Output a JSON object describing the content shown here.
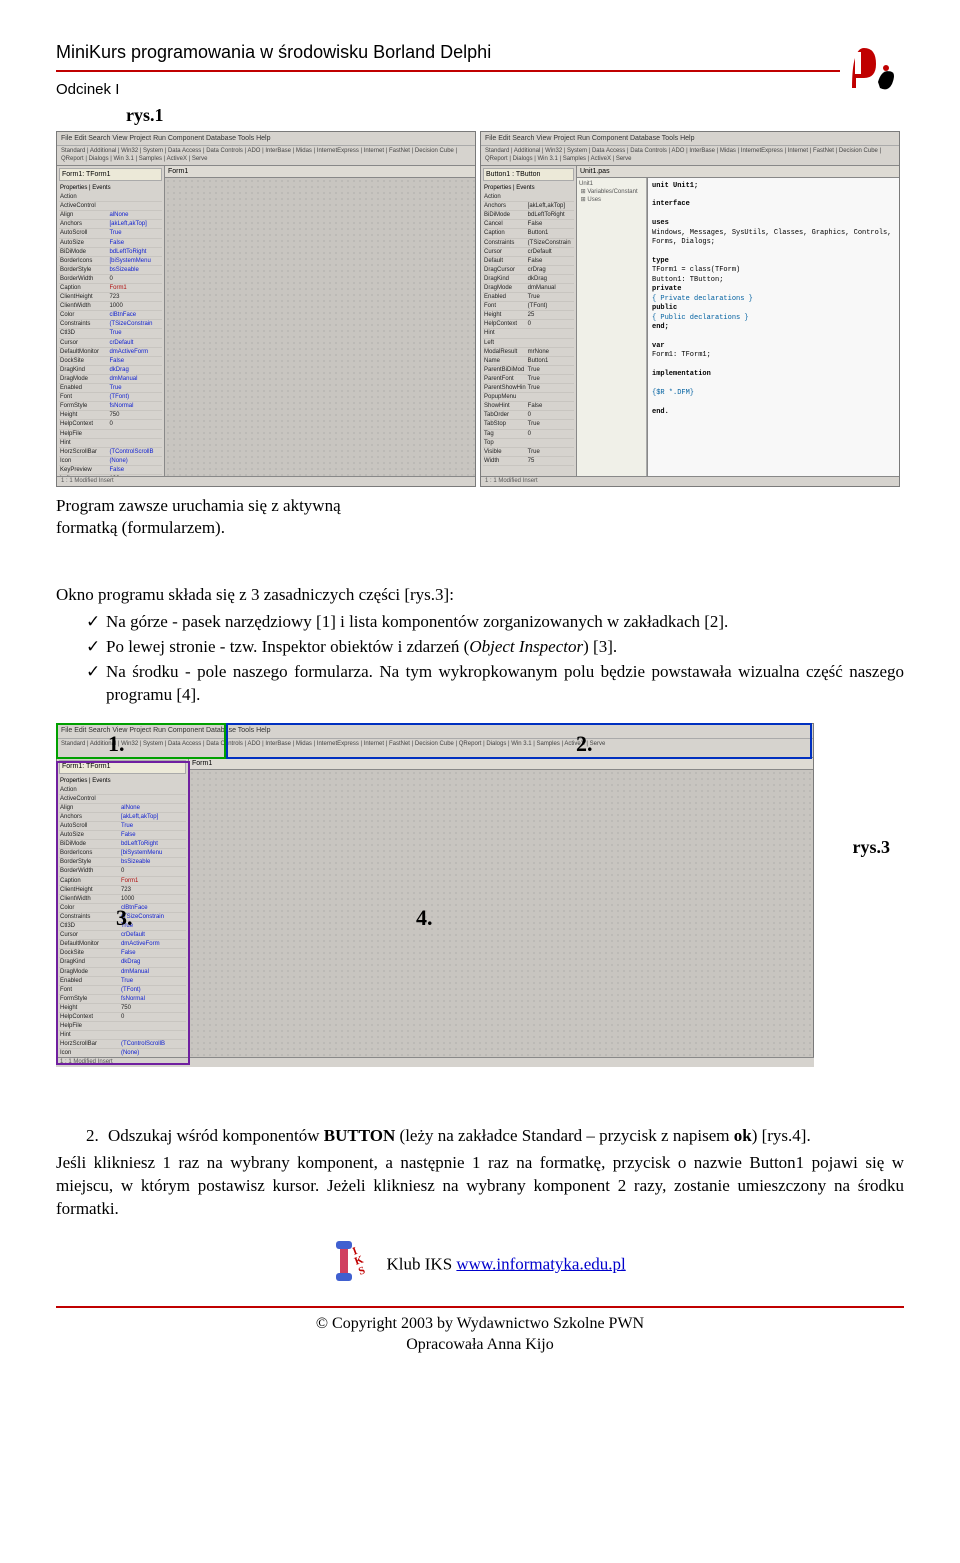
{
  "header": {
    "title": "MiniKurs programowania w środowisku Borland Delphi",
    "subtitle": "Odcinek I"
  },
  "figs": {
    "r1": "rys.1",
    "r2": "rys.2",
    "r3": "rys.3"
  },
  "ide": {
    "menubar": "File  Edit  Search  View  Project  Run  Component  Database  Tools  Help",
    "tabbar": "Standard | Additional | Win32 | System | Data Access | Data Controls | ADO | InterBase | Midas | InternetExpress | Internet | FastNet | Decision Cube | QReport | Dialogs | Win 3.1 | Samples | ActiveX | Serve",
    "form_title": "Form1",
    "inspector": {
      "title": "Form1: TForm1",
      "tabs": "Properties | Events",
      "rows": [
        {
          "k": "Action",
          "v": ""
        },
        {
          "k": "ActiveControl",
          "v": ""
        },
        {
          "k": "Align",
          "v": "alNone",
          "c": "blue"
        },
        {
          "k": "Anchors",
          "v": "[akLeft,akTop]",
          "c": "blue"
        },
        {
          "k": "AutoScroll",
          "v": "True",
          "c": "blue"
        },
        {
          "k": "AutoSize",
          "v": "False",
          "c": "blue"
        },
        {
          "k": "BiDiMode",
          "v": "bdLeftToRight",
          "c": "blue"
        },
        {
          "k": "BorderIcons",
          "v": "[biSystemMenu",
          "c": "blue"
        },
        {
          "k": "BorderStyle",
          "v": "bsSizeable",
          "c": "blue"
        },
        {
          "k": "BorderWidth",
          "v": "0"
        },
        {
          "k": "Caption",
          "v": "Form1",
          "c": "red"
        },
        {
          "k": "ClientHeight",
          "v": "723"
        },
        {
          "k": "ClientWidth",
          "v": "1000"
        },
        {
          "k": "Color",
          "v": "clBtnFace",
          "c": "blue"
        },
        {
          "k": "Constraints",
          "v": "(TSizeConstrain",
          "c": "blue"
        },
        {
          "k": "Ctl3D",
          "v": "True",
          "c": "blue"
        },
        {
          "k": "Cursor",
          "v": "crDefault",
          "c": "blue"
        },
        {
          "k": "DefaultMonitor",
          "v": "dmActiveForm",
          "c": "blue"
        },
        {
          "k": "DockSite",
          "v": "False",
          "c": "blue"
        },
        {
          "k": "DragKind",
          "v": "dkDrag",
          "c": "blue"
        },
        {
          "k": "DragMode",
          "v": "dmManual",
          "c": "blue"
        },
        {
          "k": "Enabled",
          "v": "True",
          "c": "blue"
        },
        {
          "k": "Font",
          "v": "(TFont)",
          "c": "blue"
        },
        {
          "k": "FormStyle",
          "v": "fsNormal",
          "c": "blue"
        },
        {
          "k": "Height",
          "v": "750"
        },
        {
          "k": "HelpContext",
          "v": "0"
        },
        {
          "k": "HelpFile",
          "v": ""
        },
        {
          "k": "Hint",
          "v": ""
        },
        {
          "k": "HorzScrollBar",
          "v": "(TControlScrollB",
          "c": "blue"
        },
        {
          "k": "Icon",
          "v": "(None)",
          "c": "blue"
        },
        {
          "k": "KeyPreview",
          "v": "False",
          "c": "blue"
        },
        {
          "k": "Left",
          "v": "192"
        },
        {
          "k": "Menu",
          "v": ""
        },
        {
          "k": "Name",
          "v": "Form1",
          "c": "red"
        },
        {
          "k": "ObjectMenuItem",
          "v": ""
        },
        {
          "k": "ParentBiDiMod",
          "v": "True",
          "c": "blue"
        },
        {
          "k": "ParentFont",
          "v": "False",
          "c": "blue"
        },
        {
          "k": "PixelsPerInch",
          "v": "96"
        },
        {
          "k": "PopupMenu",
          "v": ""
        },
        {
          "k": "Position",
          "v": "poDesigned",
          "c": "blue"
        },
        {
          "k": "PrintScale",
          "v": "poProportional",
          "c": "blue"
        },
        {
          "k": "Scaled",
          "v": "True",
          "c": "blue"
        },
        {
          "k": "ShowHint",
          "v": "False",
          "c": "blue"
        }
      ]
    },
    "code_title": "Unit1.pas",
    "right_panel": {
      "top": "Button1 : TButton",
      "tabs": "Properties | Events",
      "rows": [
        {
          "k": "Action",
          "v": ""
        },
        {
          "k": "Anchors",
          "v": "[akLeft,akTop]"
        },
        {
          "k": "BiDiMode",
          "v": "bdLeftToRight"
        },
        {
          "k": "Cancel",
          "v": "False"
        },
        {
          "k": "Caption",
          "v": "Button1"
        },
        {
          "k": "Constraints",
          "v": "(TSizeConstrain"
        },
        {
          "k": "Cursor",
          "v": "crDefault"
        },
        {
          "k": "Default",
          "v": "False"
        },
        {
          "k": "DragCursor",
          "v": "crDrag"
        },
        {
          "k": "DragKind",
          "v": "dkDrag"
        },
        {
          "k": "DragMode",
          "v": "dmManual"
        },
        {
          "k": "Enabled",
          "v": "True"
        },
        {
          "k": "Font",
          "v": "(TFont)"
        },
        {
          "k": "Height",
          "v": "25"
        },
        {
          "k": "HelpContext",
          "v": "0"
        },
        {
          "k": "Hint",
          "v": ""
        },
        {
          "k": "Left",
          "v": ""
        },
        {
          "k": "ModalResult",
          "v": "mrNone"
        },
        {
          "k": "Name",
          "v": "Button1"
        },
        {
          "k": "ParentBiDiMod",
          "v": "True"
        },
        {
          "k": "ParentFont",
          "v": "True"
        },
        {
          "k": "ParentShowHin",
          "v": "True"
        },
        {
          "k": "PopupMenu",
          "v": ""
        },
        {
          "k": "ShowHint",
          "v": "False"
        },
        {
          "k": "TabOrder",
          "v": "0"
        },
        {
          "k": "TabStop",
          "v": "True"
        },
        {
          "k": "Tag",
          "v": "0"
        },
        {
          "k": "Top",
          "v": ""
        },
        {
          "k": "Visible",
          "v": "True"
        },
        {
          "k": "Width",
          "v": "75"
        }
      ]
    },
    "code_lines": [
      {
        "t": "unit Unit1;",
        "kw": true
      },
      {
        "t": ""
      },
      {
        "t": "interface",
        "kw": true
      },
      {
        "t": ""
      },
      {
        "t": "uses",
        "kw": true
      },
      {
        "t": "  Windows, Messages, SysUtils, Classes, Graphics, Controls, Forms, Dialogs;"
      },
      {
        "t": ""
      },
      {
        "t": "type",
        "kw": true
      },
      {
        "t": "  TForm1 = class(TForm)"
      },
      {
        "t": "    Button1: TButton;"
      },
      {
        "t": "  private",
        "kw": true
      },
      {
        "t": "    { Private declarations }",
        "cm": true
      },
      {
        "t": "  public",
        "kw": true
      },
      {
        "t": "    { Public declarations }",
        "cm": true
      },
      {
        "t": "  end;",
        "kw": true
      },
      {
        "t": ""
      },
      {
        "t": "var",
        "kw": true
      },
      {
        "t": "  Form1: TForm1;"
      },
      {
        "t": ""
      },
      {
        "t": "implementation",
        "kw": true
      },
      {
        "t": ""
      },
      {
        "t": "{$R *.DFM}",
        "cm": true
      },
      {
        "t": ""
      },
      {
        "t": "end.",
        "kw": true
      }
    ],
    "status": "1 : 1   Modified   Insert"
  },
  "caption1": "Program zawsze uruchamia się z aktywną formatką (formularzem).",
  "section_intro": "Okno programu składa się z 3 zasadniczych części [rys.3]:",
  "bullets": [
    "Na górze - pasek narzędziowy [1] i lista komponentów zorganizowanych w zakładkach [2].",
    "Po lewej stronie - tzw. Inspektor obiektów i zdarzeń (<i>Object Inspector</i>) [3].",
    "Na środku - pole naszego formularza. Na tym wykropkowanym polu będzie powstawała wizualna część naszego programu [4]."
  ],
  "overlay": {
    "n1": "1.",
    "n2": "2.",
    "n3": "3.",
    "n4": "4."
  },
  "step2_pre": "Odszukaj wśród komponentów ",
  "step2_bold1": "BUTTON",
  "step2_mid": " (leży na zakładce Standard – przycisk z napisem ",
  "step2_bold2": "ok",
  "step2_post": ") [rys.4].",
  "step2_num": "2.",
  "after": "Jeśli klikniesz 1 raz na wybrany komponent, a następnie 1 raz na formatkę, przycisk o nazwie Button1 pojawi się w miejscu, w którym postawisz kursor. Jeżeli klikniesz na wybrany komponent 2 razy, zostanie umieszczony na środku formatki.",
  "footer": {
    "club": "Klub IKS ",
    "link_text": "www.informatyka.edu.pl",
    "copy1": "© Copyright 2003 by Wydawnictwo Szkolne PWN",
    "copy2": "Opracowała Anna Kijo"
  }
}
